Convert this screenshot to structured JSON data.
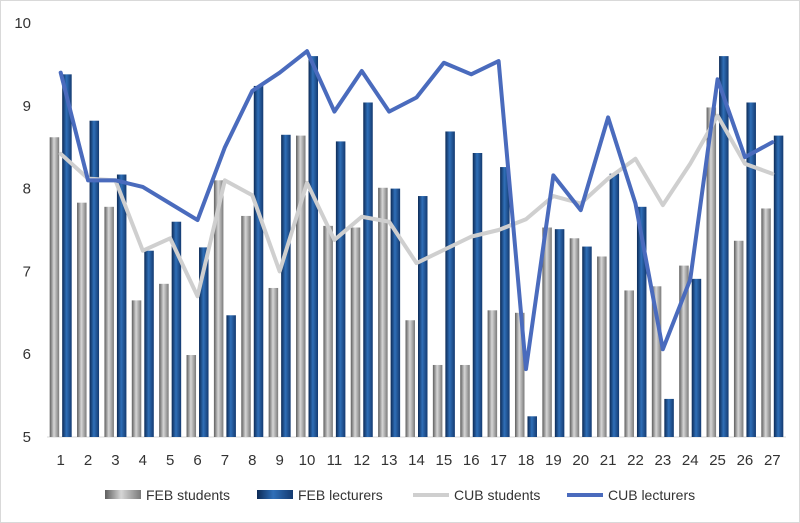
{
  "chart_data": {
    "type": "bar",
    "categories": [
      "1",
      "2",
      "3",
      "4",
      "5",
      "6",
      "7",
      "8",
      "9",
      "10",
      "11",
      "12",
      "13",
      "14",
      "15",
      "16",
      "17",
      "18",
      "19",
      "20",
      "21",
      "22",
      "23",
      "24",
      "25",
      "26",
      "27"
    ],
    "ylim": [
      5,
      10
    ],
    "yticks": [
      5,
      6,
      7,
      8,
      9,
      10
    ],
    "grid": false,
    "legend_position": "bottom",
    "series": [
      {
        "name": "FEB students",
        "kind": "bar",
        "color": "#8c8c8c",
        "values": [
          8.62,
          7.83,
          7.78,
          6.65,
          6.85,
          5.99,
          8.1,
          7.67,
          6.8,
          8.64,
          7.55,
          7.53,
          8.01,
          6.41,
          5.87,
          5.87,
          6.53,
          6.5,
          7.53,
          7.4,
          7.18,
          6.77,
          6.82,
          7.07,
          8.98,
          7.37,
          7.76
        ]
      },
      {
        "name": "FEB lecturers",
        "kind": "bar",
        "color": "#1f4e8c",
        "values": [
          9.38,
          8.82,
          8.17,
          7.25,
          7.6,
          7.29,
          6.47,
          9.24,
          8.65,
          9.6,
          8.57,
          9.04,
          8.0,
          7.91,
          8.69,
          8.43,
          8.26,
          5.25,
          7.51,
          7.3,
          8.18,
          7.78,
          5.46,
          6.91,
          9.6,
          9.04,
          8.64
        ]
      },
      {
        "name": "CUB students",
        "kind": "line",
        "color": "#cfcfcf",
        "values": [
          8.42,
          8.12,
          8.1,
          7.25,
          7.4,
          6.7,
          8.1,
          7.92,
          7.0,
          8.07,
          7.38,
          7.66,
          7.6,
          7.1,
          7.26,
          7.42,
          7.5,
          7.63,
          7.91,
          7.82,
          8.12,
          8.36,
          7.8,
          8.3,
          8.88,
          8.3,
          8.18
        ]
      },
      {
        "name": "CUB lecturers",
        "kind": "line",
        "color": "#4a6bbd",
        "values": [
          9.4,
          8.1,
          8.1,
          8.02,
          7.82,
          7.62,
          8.5,
          9.18,
          9.4,
          9.66,
          8.93,
          9.42,
          8.93,
          9.1,
          9.52,
          9.38,
          9.54,
          5.82,
          8.16,
          7.74,
          8.86,
          7.82,
          6.06,
          6.9,
          9.32,
          8.38,
          8.56
        ]
      }
    ]
  }
}
